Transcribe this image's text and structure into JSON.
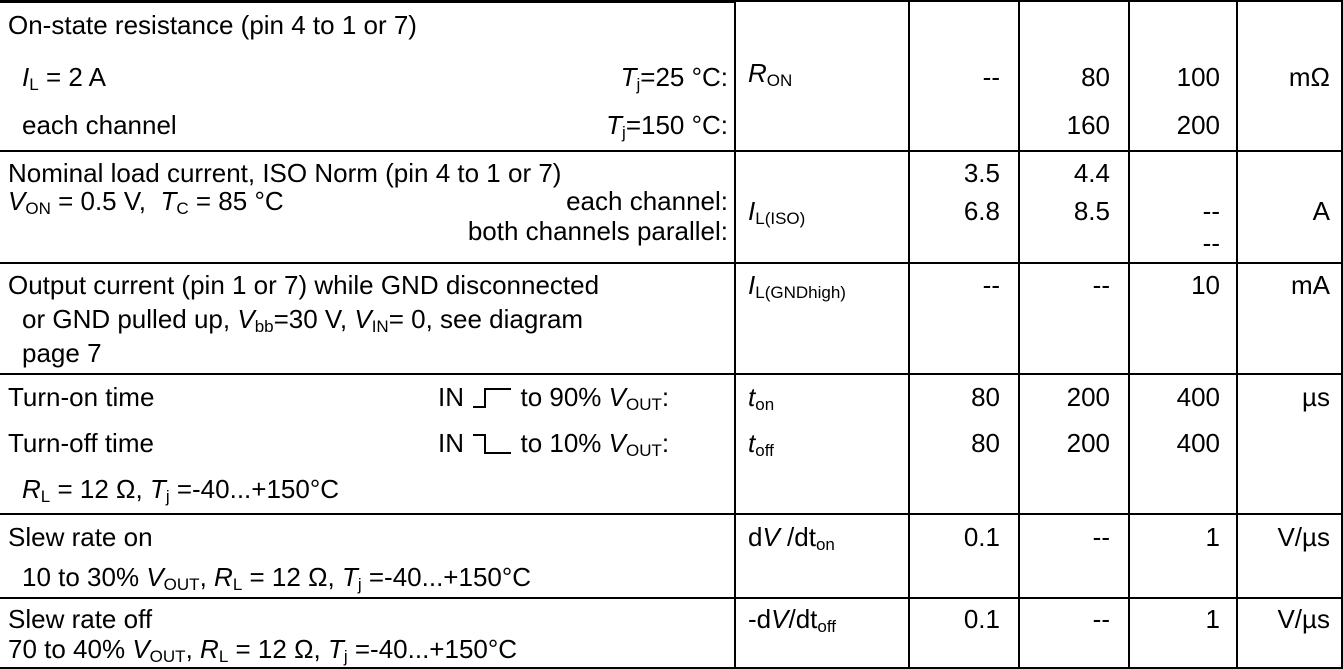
{
  "header_fragment": "",
  "rows": [
    {
      "desc": "On-state resistance (pin 4 to 1 or 7)",
      "line2_left": "= 2 A",
      "line2_left_var": "I",
      "line2_left_sub": "L",
      "cond1": "=25 °C:",
      "cond1_var": "T",
      "cond1_sub": "j",
      "line3_left": "each channel",
      "cond2": "=150 °C:",
      "cond2_var": "T",
      "cond2_sub": "j",
      "symbol_var": "R",
      "symbol_sub": "ON",
      "min": "--",
      "typ": [
        "80",
        "160"
      ],
      "max": [
        "100",
        "200"
      ],
      "unit": "mΩ"
    },
    {
      "desc": "Nominal load current, ISO Norm (pin 4 to 1 or 7)",
      "cond_a_var": "V",
      "cond_a_sub": "ON",
      "cond_a": "= 0.5 V,",
      "cond_b_var": "T",
      "cond_b_sub": "C",
      "cond_b": "= 85 °C",
      "each_channel": "each channel:",
      "both_channels": "both channels parallel:",
      "symbol_var": "I",
      "symbol_sub": "L(ISO)",
      "min": [
        "3.5",
        "6.8"
      ],
      "typ": [
        "4.4",
        "8.5"
      ],
      "max": [
        "--",
        "--"
      ],
      "unit": "A"
    },
    {
      "desc": "Output current (pin 1 or 7) while GND disconnected",
      "line2a": "or GND pulled up,",
      "line2_var1": "V",
      "line2_sub1": "bb",
      "line2b": "=30 V,",
      "line2_var2": "V",
      "line2_sub2": "IN",
      "line2c": "= 0, see diagram",
      "line3": "page 7",
      "symbol_var": "I",
      "symbol_sub": "L(GNDhigh)",
      "min": "--",
      "typ": "--",
      "max": "10",
      "unit": "mA"
    },
    {
      "on_label": "Turn-on time",
      "on_in": "IN",
      "on_to": "to 90%",
      "off_label": "Turn-off time",
      "off_in": "IN",
      "off_to": "to 10%",
      "vout_var": "V",
      "vout_sub": "OUT",
      "colon": ":",
      "line3_var1": "R",
      "line3_sub1": "L",
      "line3a": "= 12 Ω,",
      "line3_var2": "T",
      "line3_sub2": "j",
      "line3b": "=-40...+150°C",
      "sym_on_var": "t",
      "sym_on_sub": "on",
      "sym_off_var": "t",
      "sym_off_sub": "off",
      "min": [
        "80",
        "80"
      ],
      "typ": [
        "200",
        "200"
      ],
      "max": [
        "400",
        "400"
      ],
      "unit": "µs"
    },
    {
      "desc": "Slew rate on",
      "line2a": "10 to 30%",
      "line2_var1": "V",
      "line2_sub1": "OUT",
      "line2b": ",",
      "line2_var2": "R",
      "line2_sub2": "L",
      "line2c": "= 12 Ω,",
      "line2_var3": "T",
      "line2_sub3": "j",
      "line2d": "=-40...+150°C",
      "symbol_pre": "d",
      "symbol_var": "V",
      "symbol_mid": "/dt",
      "symbol_sub": "on",
      "min": "0.1",
      "typ": "--",
      "max": "1",
      "unit": "V/µs"
    },
    {
      "desc": "Slew rate off",
      "line2a": "70 to 40%",
      "line2_var1": "V",
      "line2_sub1": "OUT",
      "line2b": ",",
      "line2_var2": "R",
      "line2_sub2": "L",
      "line2c": "= 12 Ω,",
      "line2_var3": "T",
      "line2_sub3": "j",
      "line2d": "=-40...+150°C",
      "symbol_pre": "-d",
      "symbol_var": "V",
      "symbol_mid": "/dt",
      "symbol_sub": "off",
      "min": "0.1",
      "typ": "--",
      "max": "1",
      "unit": "V/µs"
    }
  ]
}
